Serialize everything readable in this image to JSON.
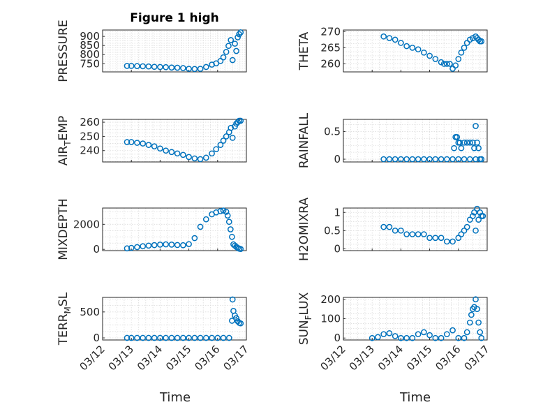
{
  "figure": {
    "title": "Figure 1 high",
    "marker_color": "#0072bd",
    "x_ticks": [
      "03/12",
      "03/13",
      "03/14",
      "03/15",
      "03/16",
      "03/17"
    ],
    "xlabel_left": "Time",
    "xlabel_right": "Time"
  },
  "chart_data": [
    {
      "type": "scatter",
      "ylabel_base": "PRESSURE",
      "ylabel_sub": "",
      "ylabel_tail": "",
      "xlim": [
        0,
        5
      ],
      "ylim": [
        705,
        935
      ],
      "yticks": [
        750,
        800,
        850,
        900
      ],
      "x": [
        0.85,
        1.0,
        1.2,
        1.4,
        1.6,
        1.8,
        2.0,
        2.2,
        2.4,
        2.6,
        2.8,
        3.0,
        3.2,
        3.4,
        3.6,
        3.8,
        3.95,
        4.1,
        4.2,
        4.3,
        4.38,
        4.46,
        4.52,
        4.6,
        4.65,
        4.7,
        4.75,
        4.8
      ],
      "y": [
        738,
        738,
        737,
        736,
        735,
        733,
        732,
        731,
        729,
        728,
        726,
        722,
        721,
        722,
        732,
        745,
        752,
        765,
        785,
        815,
        848,
        880,
        770,
        860,
        820,
        895,
        912,
        922
      ]
    },
    {
      "type": "scatter",
      "ylabel_base": "THETA",
      "ylabel_sub": "",
      "ylabel_tail": "",
      "xlim": [
        0,
        5
      ],
      "ylim": [
        257.5,
        270.5
      ],
      "yticks": [
        260,
        265,
        270
      ],
      "x": [
        1.4,
        1.6,
        1.8,
        2.0,
        2.2,
        2.4,
        2.6,
        2.8,
        3.0,
        3.2,
        3.4,
        3.5,
        3.6,
        3.7,
        3.8,
        3.9,
        4.0,
        4.1,
        4.2,
        4.3,
        4.4,
        4.5,
        4.6,
        4.65,
        4.7,
        4.75,
        4.8
      ],
      "y": [
        268.5,
        268,
        267.5,
        266.5,
        265.5,
        265,
        264.5,
        263.5,
        262.5,
        261.5,
        260.5,
        260,
        260,
        260,
        258.5,
        259.5,
        261.5,
        263.5,
        265,
        266.5,
        267.5,
        268,
        268.5,
        268,
        267.5,
        267,
        267
      ]
    },
    {
      "type": "scatter",
      "ylabel_base": "AIR",
      "ylabel_sub": "T",
      "ylabel_tail": "EMP",
      "xlim": [
        0,
        5
      ],
      "ylim": [
        232,
        262
      ],
      "yticks": [
        240,
        250,
        260
      ],
      "x": [
        0.85,
        1.0,
        1.2,
        1.4,
        1.6,
        1.8,
        2.0,
        2.2,
        2.4,
        2.6,
        2.8,
        3.0,
        3.2,
        3.4,
        3.6,
        3.8,
        3.95,
        4.1,
        4.2,
        4.3,
        4.4,
        4.46,
        4.52,
        4.6,
        4.65,
        4.7,
        4.75,
        4.8
      ],
      "y": [
        246,
        246,
        245.5,
        245,
        244,
        243,
        241.5,
        240,
        239,
        238,
        237,
        235.5,
        234.5,
        234,
        235,
        238,
        241,
        244,
        247,
        250,
        253,
        256,
        249,
        257,
        259,
        260,
        261,
        261
      ]
    },
    {
      "type": "scatter",
      "ylabel_base": "RAINFALL",
      "ylabel_sub": "",
      "ylabel_tail": "",
      "xlim": [
        0,
        5
      ],
      "ylim": [
        -0.05,
        0.72
      ],
      "yticks": [
        0,
        0.5
      ],
      "x": [
        1.4,
        1.6,
        1.8,
        2.0,
        2.2,
        2.4,
        2.6,
        2.8,
        3.0,
        3.2,
        3.4,
        3.6,
        3.8,
        3.85,
        3.9,
        3.95,
        4.0,
        4.05,
        4.1,
        4.2,
        4.3,
        4.4,
        4.5,
        4.55,
        4.6,
        4.65,
        4.7,
        4.75,
        4.8,
        4.0,
        4.2,
        4.4,
        4.6,
        4.8
      ],
      "y": [
        0,
        0,
        0,
        0,
        0,
        0,
        0,
        0,
        0,
        0,
        0,
        0,
        0,
        0.2,
        0.4,
        0.4,
        0.3,
        0.3,
        0.2,
        0.3,
        0.3,
        0.3,
        0.3,
        0.2,
        0.6,
        0.3,
        0.2,
        0,
        0,
        0,
        0,
        0,
        0,
        0
      ]
    },
    {
      "type": "scatter",
      "ylabel_base": "MIXDEPTH",
      "ylabel_sub": "",
      "ylabel_tail": "",
      "xlim": [
        0,
        5
      ],
      "ylim": [
        -100,
        3300
      ],
      "yticks": [
        0,
        2000
      ],
      "x": [
        0.85,
        1.0,
        1.2,
        1.4,
        1.6,
        1.8,
        2.0,
        2.2,
        2.4,
        2.6,
        2.8,
        3.0,
        3.2,
        3.4,
        3.6,
        3.8,
        3.95,
        4.1,
        4.2,
        4.3,
        4.35,
        4.4,
        4.45,
        4.5,
        4.55,
        4.6,
        4.65,
        4.7,
        4.75,
        4.8
      ],
      "y": [
        80,
        120,
        180,
        250,
        300,
        340,
        380,
        400,
        380,
        350,
        330,
        420,
        900,
        1800,
        2400,
        2800,
        2950,
        3050,
        3100,
        3000,
        2700,
        2200,
        1600,
        1000,
        400,
        300,
        200,
        120,
        60,
        30
      ]
    },
    {
      "type": "scatter",
      "ylabel_base": "H2OMIXRA",
      "ylabel_sub": "",
      "ylabel_tail": "",
      "xlim": [
        0,
        5
      ],
      "ylim": [
        -0.05,
        1.12
      ],
      "yticks": [
        0,
        0.5,
        1
      ],
      "x": [
        1.4,
        1.6,
        1.8,
        2.0,
        2.2,
        2.4,
        2.6,
        2.8,
        3.0,
        3.2,
        3.4,
        3.6,
        3.8,
        4.0,
        4.1,
        4.2,
        4.3,
        4.4,
        4.5,
        4.55,
        4.6,
        4.65,
        4.7,
        4.75,
        4.8,
        4.85
      ],
      "y": [
        0.6,
        0.6,
        0.5,
        0.5,
        0.4,
        0.4,
        0.4,
        0.4,
        0.3,
        0.3,
        0.3,
        0.2,
        0.2,
        0.3,
        0.4,
        0.5,
        0.6,
        0.8,
        0.9,
        1.0,
        0.5,
        1.1,
        0.8,
        1.0,
        0.9,
        0.9
      ]
    },
    {
      "type": "scatter",
      "ylabel_base": "TERR",
      "ylabel_sub": "M",
      "ylabel_tail": "SL",
      "xlim": [
        0,
        5
      ],
      "ylim": [
        -40,
        780
      ],
      "yticks": [
        0,
        500
      ],
      "x": [
        0.85,
        1.0,
        1.2,
        1.4,
        1.6,
        1.8,
        2.0,
        2.2,
        2.4,
        2.6,
        2.8,
        3.0,
        3.2,
        3.4,
        3.6,
        3.8,
        4.0,
        4.2,
        4.4,
        4.5,
        4.52,
        4.55,
        4.6,
        4.65,
        4.7,
        4.75,
        4.8
      ],
      "y": [
        0,
        0,
        0,
        0,
        0,
        0,
        0,
        0,
        0,
        0,
        0,
        0,
        0,
        0,
        0,
        0,
        0,
        0,
        0,
        330,
        740,
        520,
        430,
        380,
        320,
        290,
        280
      ]
    },
    {
      "type": "scatter",
      "ylabel_base": "SUN",
      "ylabel_sub": "F",
      "ylabel_tail": "LUX",
      "xlim": [
        0,
        5
      ],
      "ylim": [
        -10,
        210
      ],
      "yticks": [
        0,
        100,
        200
      ],
      "x": [
        1.0,
        1.2,
        1.4,
        1.6,
        1.8,
        2.0,
        2.2,
        2.4,
        2.6,
        2.8,
        3.0,
        3.2,
        3.4,
        3.6,
        3.8,
        4.0,
        4.2,
        4.3,
        4.4,
        4.45,
        4.5,
        4.55,
        4.6,
        4.65,
        4.7,
        4.75,
        4.8
      ],
      "y": [
        0,
        5,
        20,
        25,
        10,
        0,
        0,
        0,
        20,
        30,
        15,
        0,
        0,
        20,
        40,
        0,
        0,
        30,
        80,
        120,
        150,
        160,
        200,
        150,
        80,
        30,
        0
      ]
    }
  ]
}
